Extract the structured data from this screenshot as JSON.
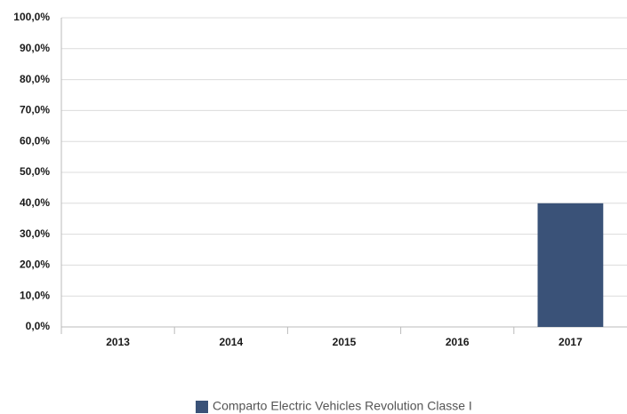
{
  "chart_data": {
    "type": "bar",
    "categories": [
      "2013",
      "2014",
      "2015",
      "2016",
      "2017"
    ],
    "series": [
      {
        "name": "Comparto Electric Vehicles Revolution Classe I",
        "color": "#3a5278",
        "values": [
          null,
          null,
          null,
          null,
          40
        ]
      }
    ],
    "ylim": [
      0,
      100
    ],
    "yticks": [
      {
        "value": 0,
        "label": "0,0%"
      },
      {
        "value": 10,
        "label": "10,0%"
      },
      {
        "value": 20,
        "label": "20,0%"
      },
      {
        "value": 30,
        "label": "30,0%"
      },
      {
        "value": 40,
        "label": "40,0%"
      },
      {
        "value": 50,
        "label": "50,0%"
      },
      {
        "value": 60,
        "label": "60,0%"
      },
      {
        "value": 70,
        "label": "70,0%"
      },
      {
        "value": 80,
        "label": "80,0%"
      },
      {
        "value": 90,
        "label": "90,0%"
      },
      {
        "value": 100,
        "label": "100,0%"
      }
    ],
    "grid": true,
    "legend": "bottom"
  }
}
